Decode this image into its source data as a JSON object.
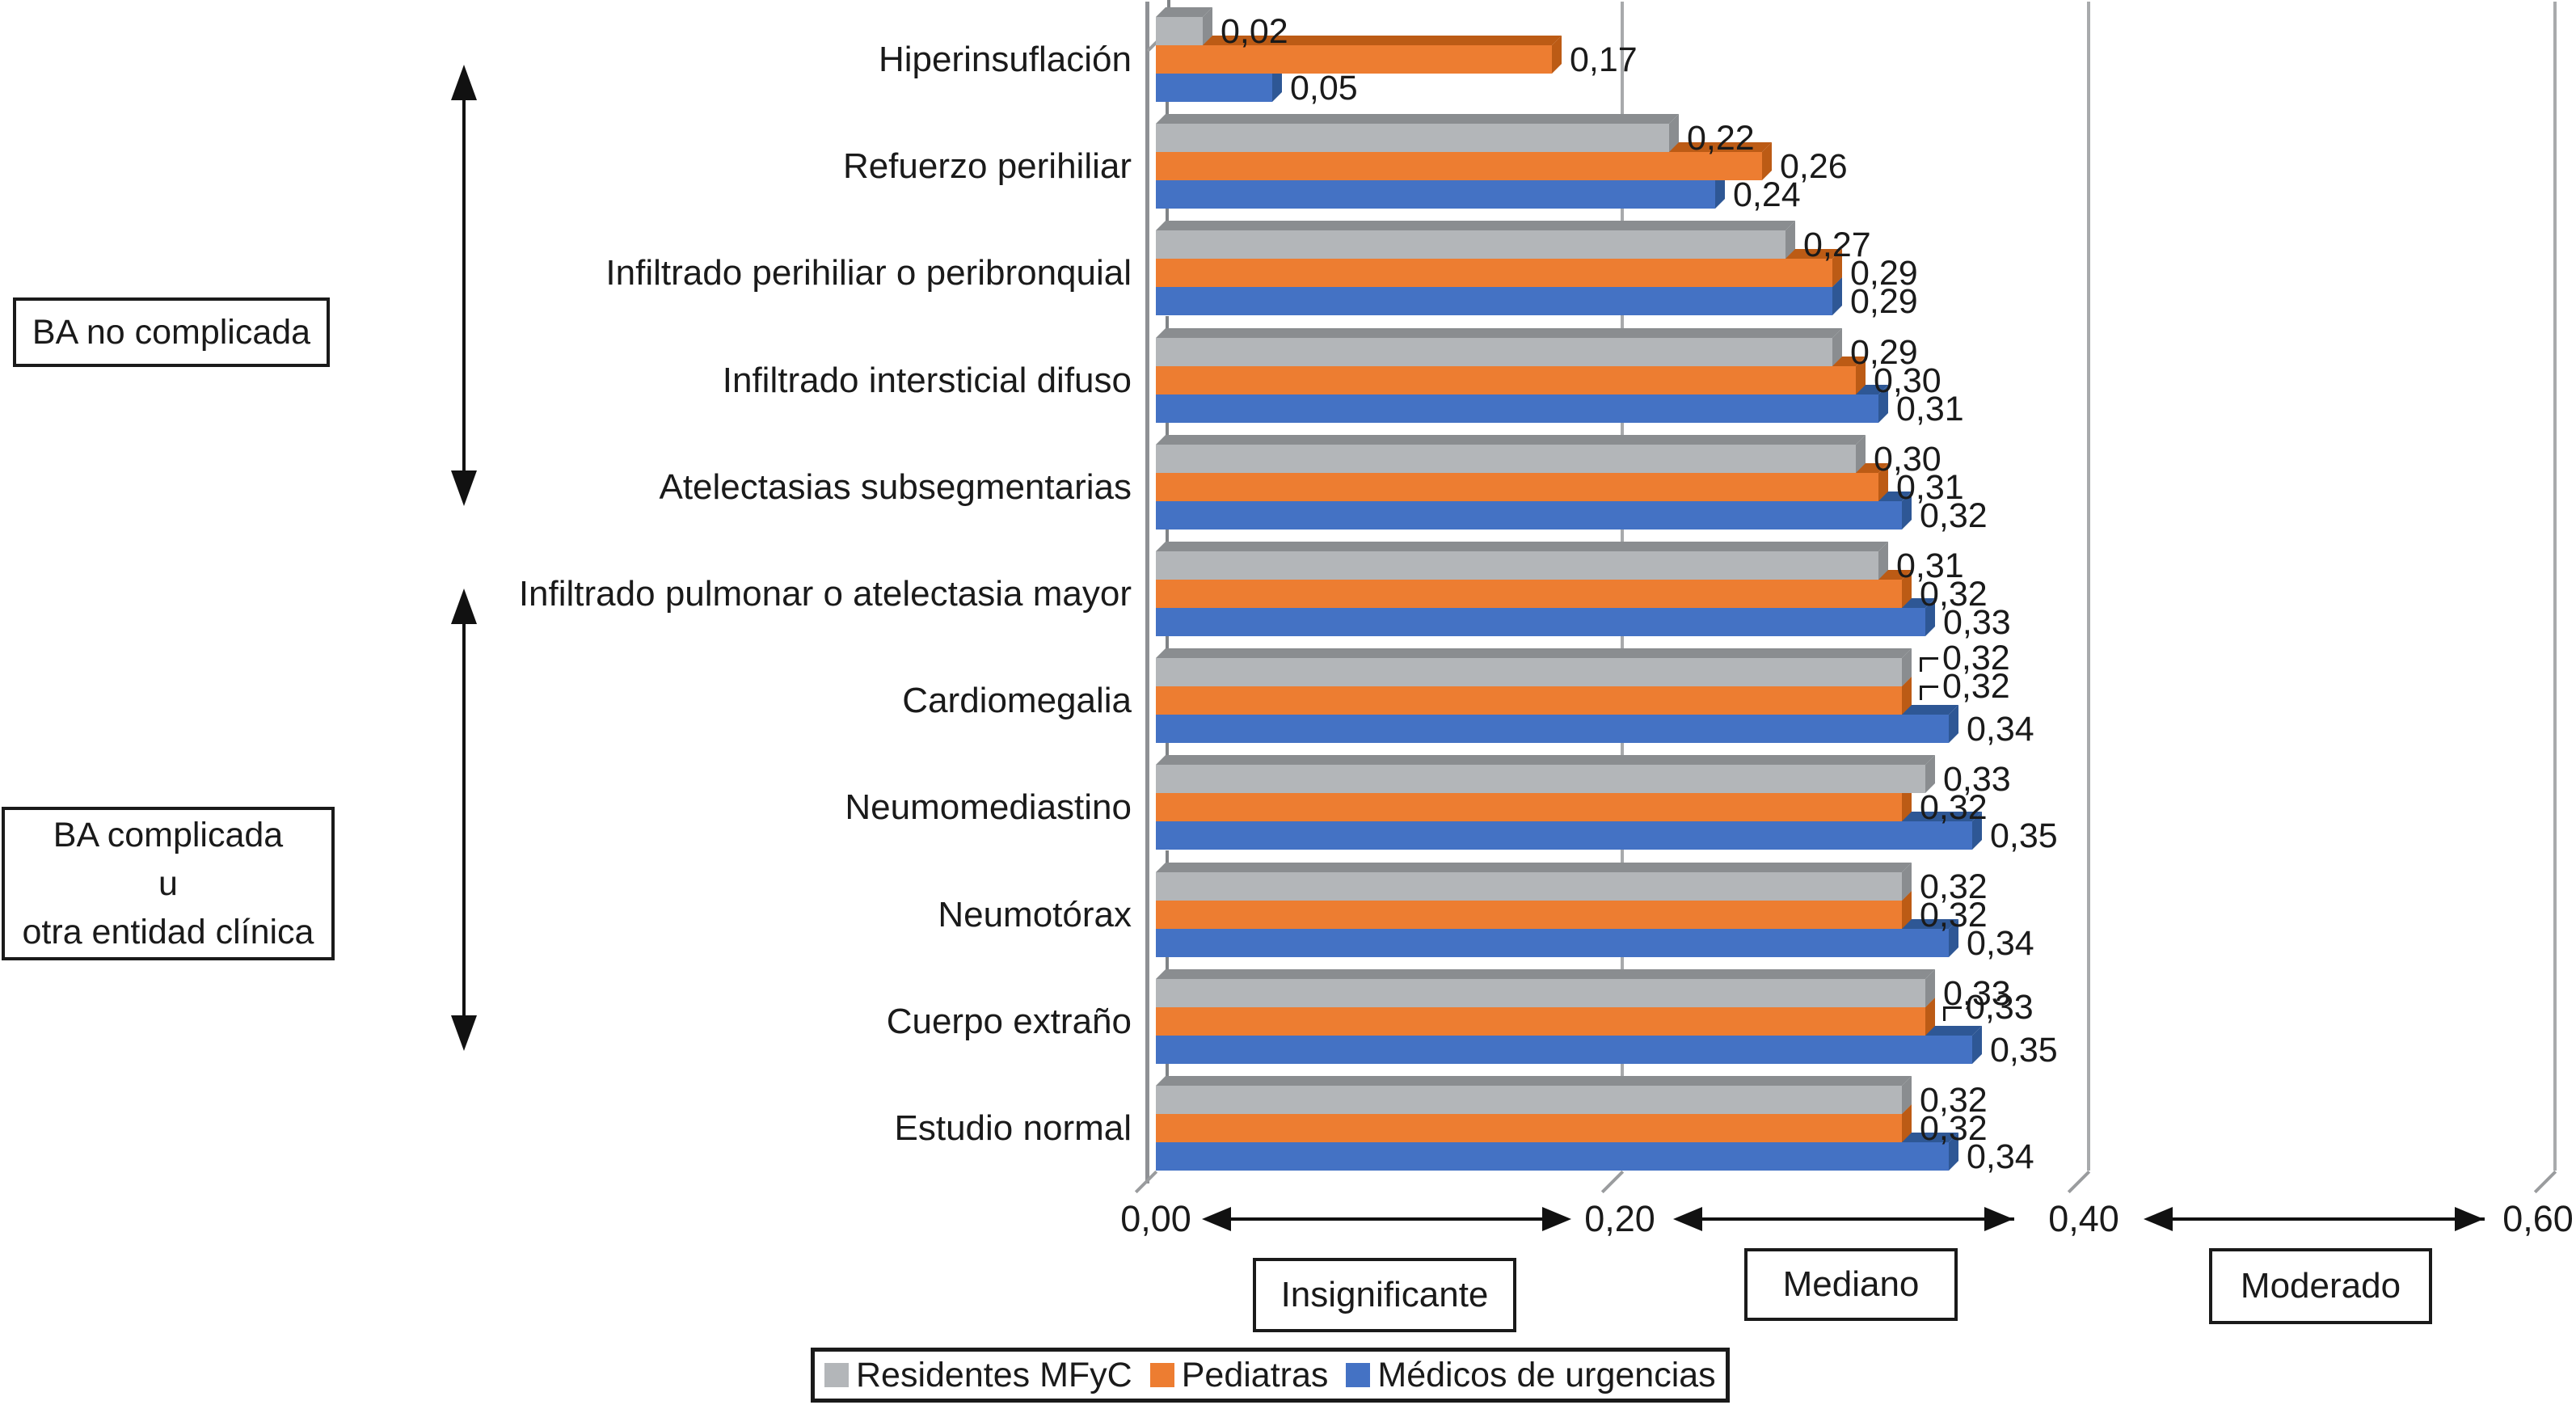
{
  "chart_data": {
    "type": "bar",
    "orientation": "horizontal",
    "style": "3d",
    "title": "",
    "categories": [
      "Hiperinsuflación",
      "Refuerzo perihiliar",
      "Infiltrado perihiliar o peribronquial",
      "Infiltrado intersticial difuso",
      "Atelectasias subsegmentarias",
      "Infiltrado pulmonar o atelectasia mayor",
      "Cardiomegalia",
      "Neumomediastino",
      "Neumotórax",
      "Cuerpo extraño",
      "Estudio normal"
    ],
    "series": [
      {
        "name": "Residentes MFyC",
        "color": "#B3B6B9",
        "dark_color": "#8A8D90",
        "values": [
          0.02,
          0.22,
          0.27,
          0.29,
          0.3,
          0.31,
          0.32,
          0.33,
          0.32,
          0.33,
          0.32
        ],
        "labels": [
          "0,02",
          "0,22",
          "0,27",
          "0,29",
          "0,30",
          "0,31",
          "0,32",
          "0,33",
          "0,32",
          "0,33",
          "0,32"
        ]
      },
      {
        "name": "Pediatras",
        "color": "#ED7D31",
        "dark_color": "#BC5B15",
        "values": [
          0.17,
          0.26,
          0.29,
          0.3,
          0.31,
          0.32,
          0.32,
          0.32,
          0.32,
          0.33,
          0.32
        ],
        "labels": [
          "0,17",
          "0,26",
          "0,29",
          "0,30",
          "0,31",
          "0,32",
          "0,32",
          "0,32",
          "0,32",
          "0,33",
          "0,32"
        ]
      },
      {
        "name": "Médicos de urgencias",
        "color": "#4472C4",
        "dark_color": "#2E5795",
        "values": [
          0.05,
          0.24,
          0.29,
          0.31,
          0.32,
          0.33,
          0.34,
          0.35,
          0.34,
          0.35,
          0.34
        ],
        "labels": [
          "0,05",
          "0,24",
          "0,29",
          "0,31",
          "0,32",
          "0,33",
          "0,34",
          "0,35",
          "0,34",
          "0,35",
          "0,34"
        ]
      }
    ],
    "leader_line_labels": [
      {
        "series": 0,
        "category": "Cardiomegalia"
      },
      {
        "series": 1,
        "category": "Cardiomegalia"
      },
      {
        "series": 1,
        "category": "Cuerpo extraño"
      }
    ],
    "xlim": [
      0,
      0.6
    ],
    "xticks": [
      "0,00",
      "0,20",
      "0,40",
      "0,60"
    ],
    "zone_labels": [
      "Insignificante",
      "Mediano",
      "Moderado"
    ],
    "grid": "vertical-lines-at-0.20-0.40-0.60",
    "legend_position": "bottom"
  },
  "side_annotations": {
    "box1": {
      "text": "BA no complicada"
    },
    "box2": {
      "lines": [
        "BA complicada",
        "u",
        "otra entidad clínica"
      ]
    }
  }
}
